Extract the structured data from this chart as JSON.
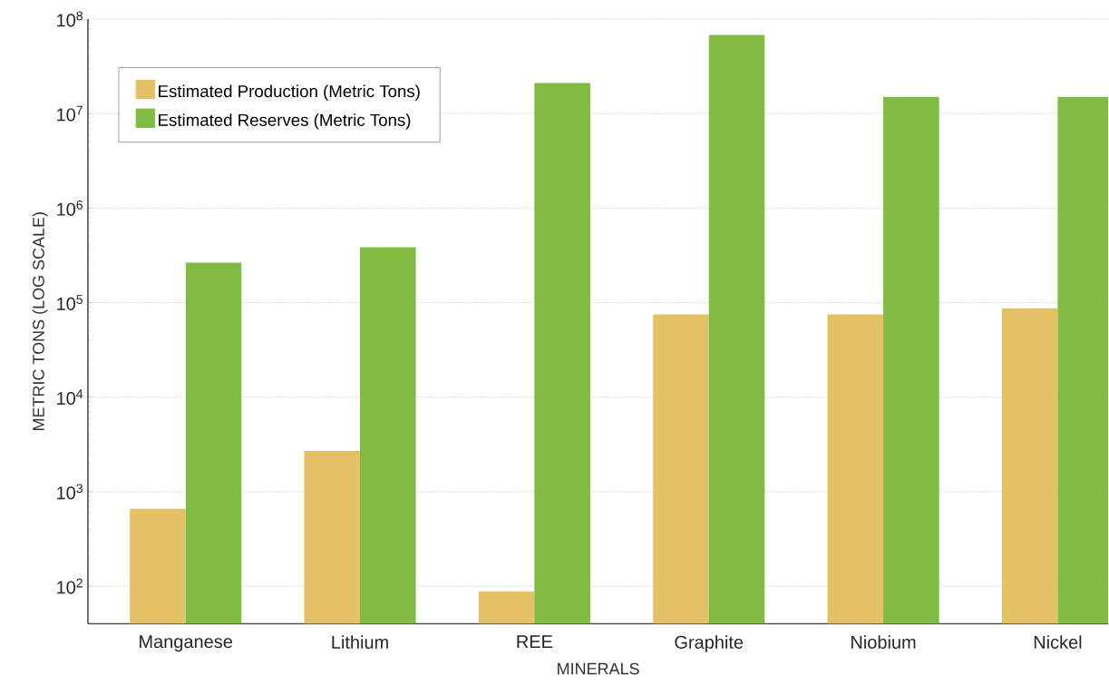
{
  "chart_data": {
    "type": "bar",
    "xlabel": "MINERALS",
    "ylabel": "METRIC TONS (LOG SCALE)",
    "categories": [
      "Manganese",
      "Lithium",
      "REE",
      "Graphite",
      "Niobium",
      "Nickel"
    ],
    "series": [
      {
        "name": "Estimated Production (Metric Tons)",
        "color": "#e3c164",
        "values": [
          660,
          2700,
          88,
          75000,
          75000,
          87000
        ]
      },
      {
        "name": "Estimated Reserves (Metric Tons)",
        "color": "#7fbc41",
        "values": [
          265000,
          385000,
          21000000,
          68000000,
          15000000,
          15000000
        ]
      }
    ],
    "log": true,
    "ylim": [
      40,
      100000000
    ],
    "yticks": [
      {
        "value": 100,
        "label": "10$^{2}$"
      },
      {
        "value": 1000,
        "label": "10$^{3}$"
      },
      {
        "value": 10000,
        "label": "10$^{4}$"
      },
      {
        "value": 100000,
        "label": "10$^{5}$"
      },
      {
        "value": 1000000,
        "label": "10$^{6}$"
      },
      {
        "value": 10000000,
        "label": "10$^{7}$"
      },
      {
        "value": 100000000,
        "label": "10$^{8}$"
      }
    ],
    "grid": "y",
    "legend": "top left"
  }
}
